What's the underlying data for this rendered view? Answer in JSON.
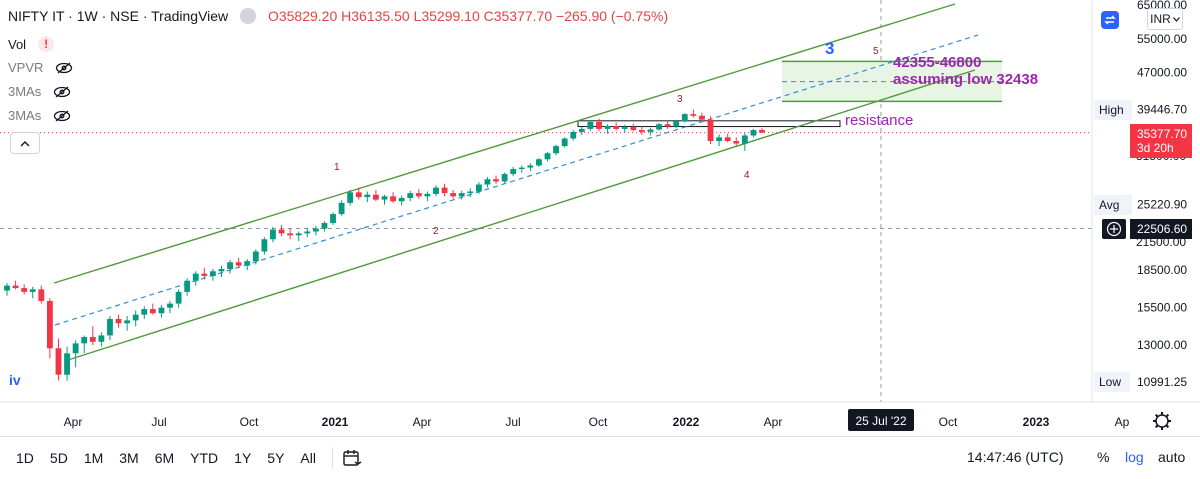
{
  "legend": {
    "symbol": "NIFTY IT · 1W · NSE · TradingView",
    "open": "O35829.20",
    "high": "H36135.50",
    "low": "L35299.10",
    "close": "C35377.70",
    "change": "−265.90 (−0.75%)"
  },
  "indicators": [
    "Vol",
    "VPVR",
    "3MAs",
    "3MAs"
  ],
  "currency": "INR",
  "bottom_toolbar": {
    "ranges": [
      "1D",
      "5D",
      "1M",
      "3M",
      "6M",
      "YTD",
      "1Y",
      "5Y",
      "All"
    ],
    "time": "14:47:46 (UTC)",
    "percent": "%",
    "log": "log",
    "auto": "auto"
  },
  "colors": {
    "up": "#089981",
    "down": "#f23645",
    "channel": "#4f9a3c",
    "dashed": "#2f8fe0",
    "annotation": "#9c27b0",
    "wave": "#8b1a1a",
    "target_fill": "#e8f5e4"
  },
  "chart_data": {
    "type": "candlestick",
    "timeframe": "1W",
    "x_ticks": [
      "Apr",
      "Jul",
      "Oct",
      "2021",
      "Apr",
      "Jul",
      "Oct",
      "2022",
      "Apr",
      "Jul",
      "Oct",
      "2023",
      "Ap"
    ],
    "y_ticks": [
      65000,
      55000,
      47000,
      39446.7,
      25220.9,
      22506.6,
      18500,
      15500,
      13000,
      10991.25
    ],
    "y_tick_labels": [
      "65000.00",
      "55000.00",
      "47000.00",
      "39446.70",
      "25220.90",
      "22506.60",
      "18500.00",
      "15500.00",
      "13000.00",
      "10991.25"
    ],
    "hidden_ticks": [
      "31500.00",
      "21500.00"
    ],
    "ylim": [
      10000,
      68000
    ],
    "scale": "log",
    "price_labels": {
      "high": {
        "label": "High",
        "value": "39446.70"
      },
      "avg": {
        "label": "Avg",
        "value": "25220.90"
      },
      "low": {
        "label": "Low",
        "value": "10991.25"
      },
      "last": {
        "value": "35377.70",
        "countdown": "3d 20h"
      },
      "crosshair_y": "22506.60",
      "crosshair_x": "25 Jul '22"
    },
    "waves": [
      "1",
      "2",
      "3",
      "4",
      "5"
    ],
    "big_wave": "3",
    "annotations": {
      "target": "42355-46800",
      "assumption": "assuming low 32438",
      "resistance": "resistance",
      "wave_iv": "iv"
    },
    "target_zone": [
      41000,
      49500
    ],
    "resistance_zone": [
      36400,
      37400
    ],
    "ohlc": [
      [
        16800,
        17400,
        16400,
        17200
      ],
      [
        17200,
        17600,
        16900,
        17000
      ],
      [
        17000,
        17300,
        16500,
        16700
      ],
      [
        16700,
        17100,
        16200,
        16900
      ],
      [
        16900,
        17200,
        15800,
        16000
      ],
      [
        16000,
        16200,
        12200,
        12800
      ],
      [
        12800,
        13400,
        11000,
        11300
      ],
      [
        11300,
        12900,
        10991,
        12500
      ],
      [
        12500,
        13300,
        11700,
        13100
      ],
      [
        13100,
        13600,
        12500,
        13500
      ],
      [
        13500,
        14200,
        13000,
        13200
      ],
      [
        13200,
        13800,
        12900,
        13600
      ],
      [
        13600,
        14900,
        13300,
        14700
      ],
      [
        14700,
        15000,
        14100,
        14400
      ],
      [
        14400,
        14900,
        13900,
        14600
      ],
      [
        14600,
        15300,
        14200,
        15000
      ],
      [
        15000,
        15600,
        14700,
        15400
      ],
      [
        15400,
        15800,
        15000,
        15100
      ],
      [
        15100,
        15700,
        14800,
        15500
      ],
      [
        15500,
        16000,
        15100,
        15800
      ],
      [
        15800,
        16900,
        15500,
        16700
      ],
      [
        16700,
        17800,
        16400,
        17600
      ],
      [
        17600,
        18400,
        17200,
        18200
      ],
      [
        18200,
        18700,
        17700,
        18000
      ],
      [
        18000,
        18600,
        17600,
        18400
      ],
      [
        18400,
        18900,
        17900,
        18600
      ],
      [
        18600,
        19400,
        18200,
        19200
      ],
      [
        19200,
        19600,
        18700,
        18900
      ],
      [
        18900,
        19500,
        18500,
        19300
      ],
      [
        19300,
        20400,
        19000,
        20200
      ],
      [
        20200,
        21600,
        19900,
        21400
      ],
      [
        21400,
        22700,
        21100,
        22400
      ],
      [
        22400,
        22900,
        21700,
        22000
      ],
      [
        22000,
        22500,
        21400,
        21800
      ],
      [
        21800,
        22200,
        21200,
        22000
      ],
      [
        22000,
        22600,
        21600,
        22200
      ],
      [
        22200,
        22800,
        21800,
        22500
      ],
      [
        22500,
        23300,
        22200,
        23100
      ],
      [
        23100,
        24300,
        22900,
        24100
      ],
      [
        24100,
        25700,
        23900,
        25400
      ],
      [
        25400,
        27000,
        25100,
        26700
      ],
      [
        26700,
        27300,
        25800,
        26100
      ],
      [
        26100,
        26800,
        25500,
        26400
      ],
      [
        26400,
        27000,
        25600,
        25800
      ],
      [
        25800,
        26400,
        25200,
        26200
      ],
      [
        26200,
        26700,
        25400,
        25600
      ],
      [
        25600,
        26300,
        25100,
        26000
      ],
      [
        26000,
        26900,
        25600,
        26600
      ],
      [
        26600,
        27100,
        25900,
        26200
      ],
      [
        26200,
        26800,
        25600,
        26500
      ],
      [
        26500,
        27600,
        26200,
        27300
      ],
      [
        27300,
        27800,
        26200,
        26600
      ],
      [
        26600,
        27000,
        25900,
        26200
      ],
      [
        26200,
        26900,
        25800,
        26600
      ],
      [
        26600,
        27200,
        26100,
        26800
      ],
      [
        26800,
        28000,
        26500,
        27700
      ],
      [
        27700,
        28700,
        27300,
        28400
      ],
      [
        28400,
        28900,
        27800,
        28100
      ],
      [
        28100,
        29300,
        27900,
        29100
      ],
      [
        29100,
        30100,
        28800,
        29800
      ],
      [
        29800,
        30300,
        29300,
        30000
      ],
      [
        30000,
        30600,
        29500,
        30300
      ],
      [
        30300,
        31400,
        30100,
        31200
      ],
      [
        31200,
        32300,
        30900,
        32100
      ],
      [
        32100,
        33400,
        31800,
        33200
      ],
      [
        33200,
        34600,
        33000,
        34400
      ],
      [
        34400,
        35800,
        34100,
        35500
      ],
      [
        35500,
        36300,
        35000,
        36000
      ],
      [
        36000,
        37500,
        35700,
        37200
      ],
      [
        37200,
        37800,
        35600,
        36000
      ],
      [
        36000,
        36800,
        35200,
        36500
      ],
      [
        36500,
        37100,
        35700,
        36000
      ],
      [
        36000,
        36700,
        35400,
        36300
      ],
      [
        36300,
        36900,
        35600,
        35800
      ],
      [
        35800,
        36400,
        35000,
        35500
      ],
      [
        35500,
        36200,
        34900,
        35900
      ],
      [
        35900,
        37000,
        35700,
        36800
      ],
      [
        36800,
        37300,
        36000,
        36400
      ],
      [
        36400,
        37500,
        36100,
        37300
      ],
      [
        37300,
        38800,
        37100,
        38600
      ],
      [
        38600,
        39446,
        38000,
        38300
      ],
      [
        38300,
        38900,
        37300,
        37600
      ],
      [
        37600,
        38200,
        33500,
        34000
      ],
      [
        34000,
        35100,
        33200,
        34600
      ],
      [
        34600,
        35200,
        33800,
        34000
      ],
      [
        34000,
        34600,
        33200,
        33600
      ],
      [
        33600,
        35300,
        32438,
        34900
      ],
      [
        34900,
        36000,
        34600,
        35800
      ],
      [
        35829,
        36135,
        35299,
        35377
      ]
    ]
  }
}
